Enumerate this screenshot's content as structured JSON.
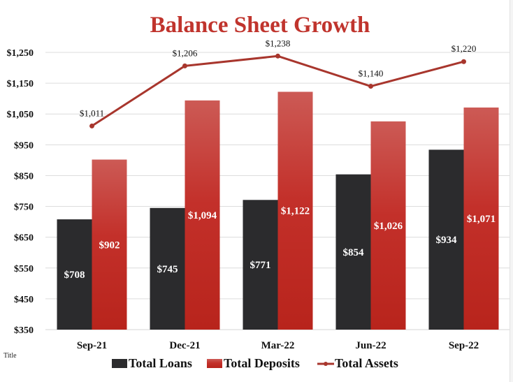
{
  "chart_data": {
    "type": "bar+line",
    "title": "Balance Sheet Growth",
    "categories": [
      "Sep-21",
      "Dec-21",
      "Mar-22",
      "Jun-22",
      "Sep-22"
    ],
    "series": [
      {
        "name": "Total Loans",
        "kind": "bar",
        "color": "#2b2b2d",
        "values": [
          708,
          745,
          771,
          854,
          934
        ],
        "labels": [
          "$708",
          "$745",
          "$771",
          "$854",
          "$934"
        ]
      },
      {
        "name": "Total Deposits",
        "kind": "bar",
        "color": "#c0281f",
        "color_top": "#cc5a55",
        "values": [
          902,
          1094,
          1122,
          1026,
          1071
        ],
        "labels": [
          "$902",
          "$1,094",
          "$1,122",
          "$1,026",
          "$1,071"
        ]
      },
      {
        "name": "Total Assets",
        "kind": "line",
        "color": "#a8362d",
        "values": [
          1011,
          1206,
          1238,
          1140,
          1220
        ],
        "labels": [
          "$1,011",
          "$1,206",
          "$1,238",
          "$1,140",
          "$1,220"
        ]
      }
    ],
    "ylim": [
      350,
      1250
    ],
    "yticks": [
      350,
      450,
      550,
      650,
      750,
      850,
      950,
      1050,
      1150,
      1250
    ],
    "ytick_labels": [
      "$350",
      "$450",
      "$550",
      "$650",
      "$750",
      "$850",
      "$950",
      "$1,050",
      "$1,150",
      "$1,250"
    ],
    "xlabel": "",
    "ylabel": "",
    "grid": "horizontal",
    "legend_position": "bottom-center"
  },
  "axis_placeholder_label": "Title"
}
